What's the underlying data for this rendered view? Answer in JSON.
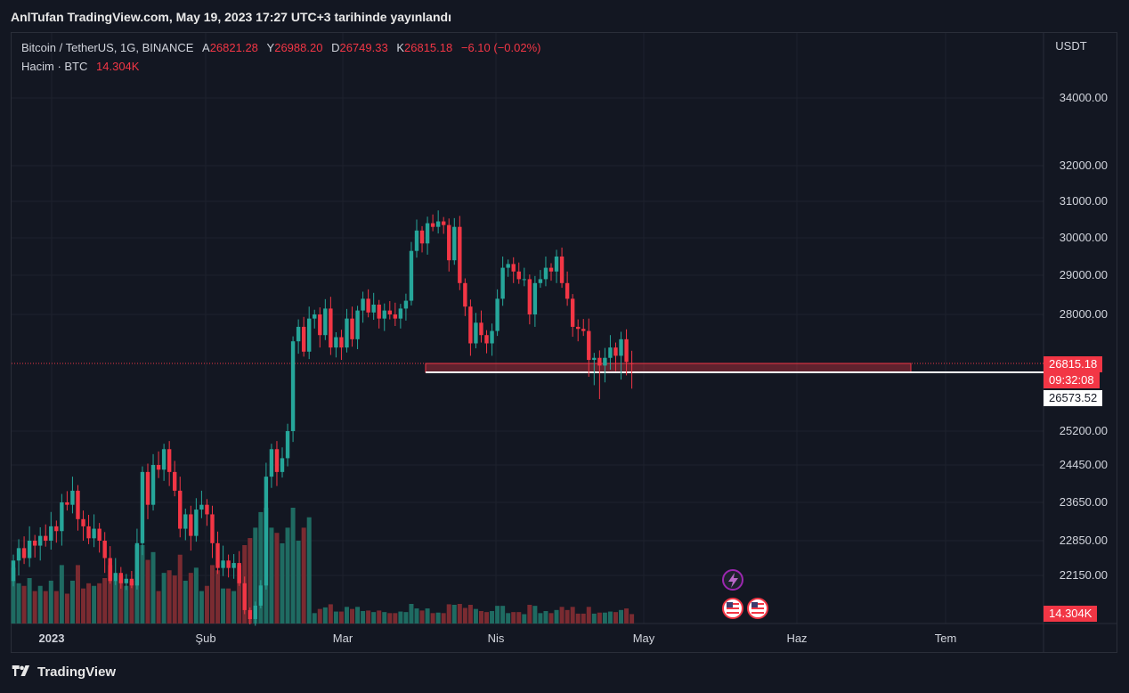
{
  "header": {
    "title": "AnlTufan TradingView.com, May 19, 2023 17:27 UTC+3 tarihinde yayınlandı"
  },
  "legend": {
    "symbol": "Bitcoin / TetherUS, 1G, BINANCE",
    "open_label": "A",
    "open": "26821.28",
    "high_label": "Y",
    "high": "26988.20",
    "low_label": "D",
    "low": "26749.33",
    "close_label": "K",
    "close": "26815.18",
    "change": "−6.10 (−0.02%)",
    "volume_label": "Hacim · BTC",
    "volume": "14.304K"
  },
  "price_tags": {
    "last_price": "26815.18",
    "countdown": "09:32:08",
    "line_price": "26573.52",
    "volume": "14.304K"
  },
  "footer": {
    "brand": "TradingView"
  },
  "colors": {
    "up": "#26a69a",
    "down": "#f23645",
    "volume_up": "#1f6b62",
    "volume_down": "#7a2b31",
    "background": "#131722"
  },
  "events": [
    "lightning-icon",
    "us-flag-icon",
    "us-flag-icon"
  ],
  "chart_data": {
    "type": "candlestick",
    "currency": "USDT",
    "y_ticks": [
      "34000.00",
      "32000.00",
      "31000.00",
      "30000.00",
      "29000.00",
      "28000.00",
      "25200.00",
      "24450.00",
      "23650.00",
      "22850.00",
      "22150.00"
    ],
    "x_ticks": [
      "2023",
      "Şub",
      "Mar",
      "Nis",
      "May",
      "Haz",
      "Tem"
    ],
    "horizontal_line": 26573.52,
    "zone": [
      26600,
      26800
    ],
    "candles": [
      {
        "o": 21900,
        "c": 22450
      },
      {
        "o": 22450,
        "c": 22700
      },
      {
        "o": 22700,
        "c": 22500
      },
      {
        "o": 22500,
        "c": 22850
      },
      {
        "o": 22850,
        "c": 22750
      },
      {
        "o": 22750,
        "c": 22950
      },
      {
        "o": 22950,
        "c": 22850
      },
      {
        "o": 22850,
        "c": 23150
      },
      {
        "o": 23150,
        "c": 23050
      },
      {
        "o": 23050,
        "c": 23650
      },
      {
        "o": 23650,
        "c": 23600
      },
      {
        "o": 23600,
        "c": 23900
      },
      {
        "o": 23900,
        "c": 23300
      },
      {
        "o": 23300,
        "c": 23150
      },
      {
        "o": 23150,
        "c": 22900
      },
      {
        "o": 22900,
        "c": 23100
      },
      {
        "o": 23100,
        "c": 22850
      },
      {
        "o": 22850,
        "c": 22500
      },
      {
        "o": 22500,
        "c": 21900
      },
      {
        "o": 21900,
        "c": 22200
      },
      {
        "o": 22200,
        "c": 21800
      },
      {
        "o": 21800,
        "c": 22000
      },
      {
        "o": 22000,
        "c": 21700
      },
      {
        "o": 21700,
        "c": 22800
      },
      {
        "o": 22800,
        "c": 24300
      },
      {
        "o": 24300,
        "c": 23600
      },
      {
        "o": 23600,
        "c": 24450
      },
      {
        "o": 24450,
        "c": 24350
      },
      {
        "o": 24350,
        "c": 24800
      },
      {
        "o": 24800,
        "c": 24300
      },
      {
        "o": 24300,
        "c": 23900
      },
      {
        "o": 23900,
        "c": 23100
      },
      {
        "o": 23100,
        "c": 23400
      },
      {
        "o": 23400,
        "c": 22950
      },
      {
        "o": 22950,
        "c": 23500
      },
      {
        "o": 23500,
        "c": 23600
      },
      {
        "o": 23600,
        "c": 23400
      },
      {
        "o": 23400,
        "c": 22800
      },
      {
        "o": 22800,
        "c": 22300
      },
      {
        "o": 22300,
        "c": 22450
      },
      {
        "o": 22450,
        "c": 22300
      },
      {
        "o": 22300,
        "c": 22400
      },
      {
        "o": 22400,
        "c": 21800
      },
      {
        "o": 21800,
        "c": 20600
      },
      {
        "o": 20600,
        "c": 20200
      },
      {
        "o": 20200,
        "c": 20800
      },
      {
        "o": 20800,
        "c": 21700
      },
      {
        "o": 21700,
        "c": 24200
      },
      {
        "o": 24200,
        "c": 24800
      },
      {
        "o": 24800,
        "c": 24300
      },
      {
        "o": 24300,
        "c": 24600
      },
      {
        "o": 24600,
        "c": 25200
      },
      {
        "o": 25200,
        "c": 27350
      },
      {
        "o": 27350,
        "c": 27700
      },
      {
        "o": 27700,
        "c": 27100
      },
      {
        "o": 27100,
        "c": 27900
      },
      {
        "o": 27900,
        "c": 28000
      },
      {
        "o": 28000,
        "c": 27500
      },
      {
        "o": 27500,
        "c": 28150
      },
      {
        "o": 28150,
        "c": 27200
      },
      {
        "o": 27200,
        "c": 27450
      },
      {
        "o": 27450,
        "c": 27200
      },
      {
        "o": 27200,
        "c": 27900
      },
      {
        "o": 27900,
        "c": 27400
      },
      {
        "o": 27400,
        "c": 28100
      },
      {
        "o": 28100,
        "c": 28400
      },
      {
        "o": 28400,
        "c": 28050
      },
      {
        "o": 28050,
        "c": 28250
      },
      {
        "o": 28250,
        "c": 27900
      },
      {
        "o": 27900,
        "c": 28100
      },
      {
        "o": 28100,
        "c": 28000
      },
      {
        "o": 28000,
        "c": 27900
      },
      {
        "o": 27900,
        "c": 28150
      },
      {
        "o": 28150,
        "c": 28350
      },
      {
        "o": 28350,
        "c": 29650
      },
      {
        "o": 29650,
        "c": 30200
      },
      {
        "o": 30200,
        "c": 29850
      },
      {
        "o": 29850,
        "c": 30400
      },
      {
        "o": 30400,
        "c": 30300
      },
      {
        "o": 30300,
        "c": 30450
      },
      {
        "o": 30450,
        "c": 30350
      },
      {
        "o": 30350,
        "c": 29400
      },
      {
        "o": 29400,
        "c": 30300
      },
      {
        "o": 30300,
        "c": 28800
      },
      {
        "o": 28800,
        "c": 28200
      },
      {
        "o": 28200,
        "c": 27300
      },
      {
        "o": 27300,
        "c": 27800
      },
      {
        "o": 27800,
        "c": 27500
      },
      {
        "o": 27500,
        "c": 27300
      },
      {
        "o": 27300,
        "c": 27600
      },
      {
        "o": 27600,
        "c": 28400
      },
      {
        "o": 28400,
        "c": 29200
      },
      {
        "o": 29200,
        "c": 29300
      },
      {
        "o": 29300,
        "c": 29100
      },
      {
        "o": 29100,
        "c": 28900
      },
      {
        "o": 28900,
        "c": 28900
      },
      {
        "o": 28900,
        "c": 28000
      },
      {
        "o": 28000,
        "c": 28800
      },
      {
        "o": 28800,
        "c": 28900
      },
      {
        "o": 28900,
        "c": 29200
      },
      {
        "o": 29200,
        "c": 29100
      },
      {
        "o": 29100,
        "c": 29500
      },
      {
        "o": 29500,
        "c": 28800
      },
      {
        "o": 28800,
        "c": 28400
      },
      {
        "o": 28400,
        "c": 27700
      },
      {
        "o": 27700,
        "c": 27650
      },
      {
        "o": 27650,
        "c": 27600
      },
      {
        "o": 27600,
        "c": 26900
      },
      {
        "o": 26900,
        "c": 26950
      },
      {
        "o": 26950,
        "c": 26800
      },
      {
        "o": 26800,
        "c": 26950
      },
      {
        "o": 26950,
        "c": 27200
      },
      {
        "o": 27200,
        "c": 27000
      },
      {
        "o": 27000,
        "c": 27400
      },
      {
        "o": 27400,
        "c": 26850
      },
      {
        "o": 26821.28,
        "c": 26815.18
      }
    ]
  }
}
